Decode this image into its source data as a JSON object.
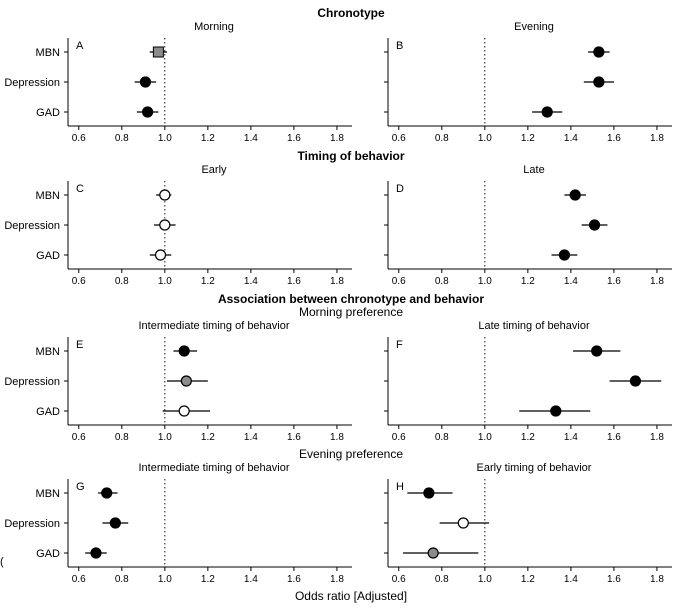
{
  "figure": {
    "xlabel": "Odds ratio [Adjusted]",
    "left_edge_char": "("
  },
  "sections": [
    {
      "title": "Chronotype",
      "subtitle": ""
    },
    {
      "title": "Timing of behavior",
      "subtitle": ""
    },
    {
      "title": "Association between chronotype and behavior",
      "subtitle": "Morning preference"
    },
    {
      "title": "",
      "subtitle": "Evening preference"
    }
  ],
  "chart_data": [
    {
      "type": "scatter",
      "panel": "A",
      "title": "Morning",
      "ylabels": true,
      "categories": [
        "MBN",
        "Depression",
        "GAD"
      ],
      "xlim": [
        0.55,
        1.87
      ],
      "xticks": [
        "0.6",
        "0.8",
        "1.0",
        "1.2",
        "1.4",
        "1.6",
        "1.8"
      ],
      "refline": 1.0,
      "series": [
        {
          "label": "MBN",
          "value": 0.97,
          "ci": [
            0.93,
            1.01
          ],
          "marker": "square",
          "fill": "#8c8c8c"
        },
        {
          "label": "Depression",
          "value": 0.91,
          "ci": [
            0.86,
            0.96
          ],
          "marker": "circle",
          "fill": "#000000"
        },
        {
          "label": "GAD",
          "value": 0.92,
          "ci": [
            0.87,
            0.97
          ],
          "marker": "circle",
          "fill": "#000000"
        }
      ]
    },
    {
      "type": "scatter",
      "panel": "B",
      "title": "Evening",
      "ylabels": false,
      "categories": [
        "MBN",
        "Depression",
        "GAD"
      ],
      "xlim": [
        0.55,
        1.87
      ],
      "xticks": [
        "0.6",
        "0.8",
        "1.0",
        "1.2",
        "1.4",
        "1.6",
        "1.8"
      ],
      "refline": 1.0,
      "series": [
        {
          "label": "MBN",
          "value": 1.53,
          "ci": [
            1.48,
            1.58
          ],
          "marker": "circle",
          "fill": "#000000"
        },
        {
          "label": "Depression",
          "value": 1.53,
          "ci": [
            1.46,
            1.6
          ],
          "marker": "circle",
          "fill": "#000000"
        },
        {
          "label": "GAD",
          "value": 1.29,
          "ci": [
            1.22,
            1.36
          ],
          "marker": "circle",
          "fill": "#000000"
        }
      ]
    },
    {
      "type": "scatter",
      "panel": "C",
      "title": "Early",
      "ylabels": true,
      "categories": [
        "MBN",
        "Depression",
        "GAD"
      ],
      "xlim": [
        0.55,
        1.87
      ],
      "xticks": [
        "0.6",
        "0.8",
        "1.0",
        "1.2",
        "1.4",
        "1.6",
        "1.8"
      ],
      "refline": 1.0,
      "series": [
        {
          "label": "MBN",
          "value": 1.0,
          "ci": [
            0.96,
            1.03
          ],
          "marker": "circle",
          "fill": "#ffffff"
        },
        {
          "label": "Depression",
          "value": 1.0,
          "ci": [
            0.95,
            1.05
          ],
          "marker": "circle",
          "fill": "#ffffff"
        },
        {
          "label": "GAD",
          "value": 0.98,
          "ci": [
            0.93,
            1.03
          ],
          "marker": "circle",
          "fill": "#ffffff"
        }
      ]
    },
    {
      "type": "scatter",
      "panel": "D",
      "title": "Late",
      "ylabels": false,
      "categories": [
        "MBN",
        "Depression",
        "GAD"
      ],
      "xlim": [
        0.55,
        1.87
      ],
      "xticks": [
        "0.6",
        "0.8",
        "1.0",
        "1.2",
        "1.4",
        "1.6",
        "1.8"
      ],
      "refline": 1.0,
      "series": [
        {
          "label": "MBN",
          "value": 1.42,
          "ci": [
            1.37,
            1.47
          ],
          "marker": "circle",
          "fill": "#000000"
        },
        {
          "label": "Depression",
          "value": 1.51,
          "ci": [
            1.45,
            1.57
          ],
          "marker": "circle",
          "fill": "#000000"
        },
        {
          "label": "GAD",
          "value": 1.37,
          "ci": [
            1.31,
            1.43
          ],
          "marker": "circle",
          "fill": "#000000"
        }
      ]
    },
    {
      "type": "scatter",
      "panel": "E",
      "title": "Intermediate timing of behavior",
      "ylabels": true,
      "categories": [
        "MBN",
        "Depression",
        "GAD"
      ],
      "xlim": [
        0.55,
        1.87
      ],
      "xticks": [
        "0.6",
        "0.8",
        "1.0",
        "1.2",
        "1.4",
        "1.6",
        "1.8"
      ],
      "refline": 1.0,
      "series": [
        {
          "label": "MBN",
          "value": 1.09,
          "ci": [
            1.04,
            1.15
          ],
          "marker": "circle",
          "fill": "#000000"
        },
        {
          "label": "Depression",
          "value": 1.1,
          "ci": [
            1.01,
            1.2
          ],
          "marker": "circle",
          "fill": "#8c8c8c"
        },
        {
          "label": "GAD",
          "value": 1.09,
          "ci": [
            0.99,
            1.21
          ],
          "marker": "circle",
          "fill": "#ffffff"
        }
      ]
    },
    {
      "type": "scatter",
      "panel": "F",
      "title": "Late timing of behavior",
      "ylabels": false,
      "categories": [
        "MBN",
        "Depression",
        "GAD"
      ],
      "xlim": [
        0.55,
        1.87
      ],
      "xticks": [
        "0.6",
        "0.8",
        "1.0",
        "1.2",
        "1.4",
        "1.6",
        "1.8"
      ],
      "refline": 1.0,
      "series": [
        {
          "label": "MBN",
          "value": 1.52,
          "ci": [
            1.41,
            1.63
          ],
          "marker": "circle",
          "fill": "#000000"
        },
        {
          "label": "Depression",
          "value": 1.7,
          "ci": [
            1.58,
            1.82
          ],
          "marker": "circle",
          "fill": "#000000"
        },
        {
          "label": "GAD",
          "value": 1.33,
          "ci": [
            1.16,
            1.49
          ],
          "marker": "circle",
          "fill": "#000000"
        }
      ]
    },
    {
      "type": "scatter",
      "panel": "G",
      "title": "Intermediate timing of behavior",
      "ylabels": true,
      "categories": [
        "MBN",
        "Depression",
        "GAD"
      ],
      "xlim": [
        0.55,
        1.87
      ],
      "xticks": [
        "0.6",
        "0.8",
        "1.0",
        "1.2",
        "1.4",
        "1.6",
        "1.8"
      ],
      "refline": 1.0,
      "series": [
        {
          "label": "MBN",
          "value": 0.73,
          "ci": [
            0.69,
            0.78
          ],
          "marker": "circle",
          "fill": "#000000"
        },
        {
          "label": "Depression",
          "value": 0.77,
          "ci": [
            0.71,
            0.83
          ],
          "marker": "circle",
          "fill": "#000000"
        },
        {
          "label": "GAD",
          "value": 0.68,
          "ci": [
            0.63,
            0.73
          ],
          "marker": "circle",
          "fill": "#000000"
        }
      ]
    },
    {
      "type": "scatter",
      "panel": "H",
      "title": "Early timing of behavior",
      "ylabels": false,
      "categories": [
        "MBN",
        "Depression",
        "GAD"
      ],
      "xlim": [
        0.55,
        1.87
      ],
      "xticks": [
        "0.6",
        "0.8",
        "1.0",
        "1.2",
        "1.4",
        "1.6",
        "1.8"
      ],
      "refline": 1.0,
      "series": [
        {
          "label": "MBN",
          "value": 0.74,
          "ci": [
            0.64,
            0.85
          ],
          "marker": "circle",
          "fill": "#000000"
        },
        {
          "label": "Depression",
          "value": 0.9,
          "ci": [
            0.79,
            1.02
          ],
          "marker": "circle",
          "fill": "#ffffff"
        },
        {
          "label": "GAD",
          "value": 0.76,
          "ci": [
            0.62,
            0.97
          ],
          "marker": "circle",
          "fill": "#8c8c8c"
        }
      ]
    }
  ]
}
